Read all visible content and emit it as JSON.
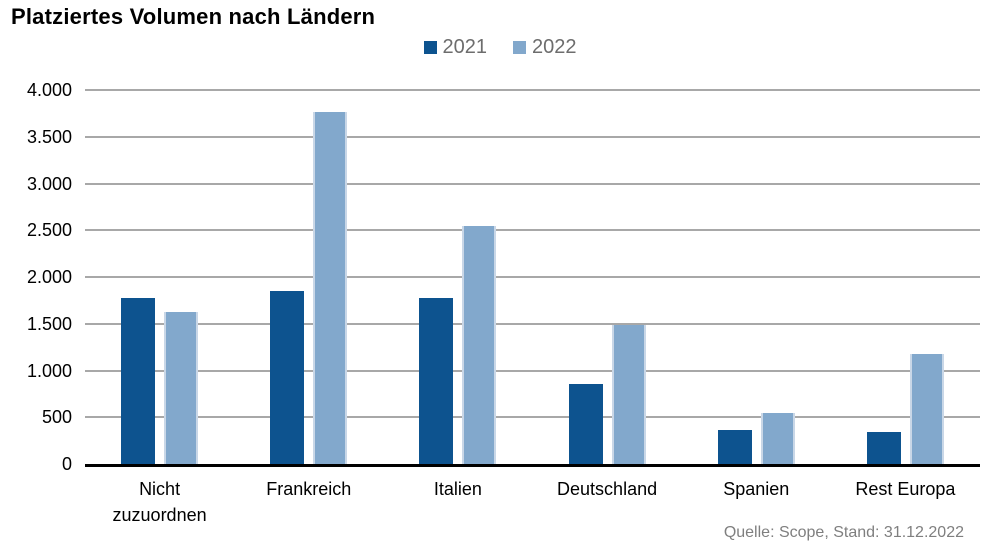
{
  "chart_data": {
    "type": "bar",
    "title": "Platziertes Volumen nach Ländern",
    "categories": [
      "Nicht\nzuzuordnen",
      "Frankreich",
      "Italien",
      "Deutschland",
      "Spanien",
      "Rest Europa"
    ],
    "series": [
      {
        "name": "2021",
        "color": "#0d538f",
        "values": [
          1780,
          1850,
          1780,
          860,
          360,
          340
        ]
      },
      {
        "name": "2022",
        "color": "#82a8cc",
        "values": [
          1630,
          3770,
          2550,
          1490,
          550,
          1180
        ]
      }
    ],
    "ylim": [
      0,
      4000
    ],
    "y_tick_step": 500,
    "y_tick_labels": [
      "0",
      "500",
      "1.000",
      "1.500",
      "2.000",
      "2.500",
      "3.000",
      "3.500",
      "4.000"
    ],
    "grid": true,
    "legend_position": "top-center",
    "source": "Quelle: Scope, Stand: 31.12.2022",
    "colors": {
      "axis": "#000000",
      "grid": "#a8a8a8",
      "tick_text": "#000000",
      "legend_text": "#6d6d6d",
      "source_text": "#7f7f7f",
      "light_bar_edge": "#c9d7e7",
      "background": "#ffffff"
    }
  }
}
